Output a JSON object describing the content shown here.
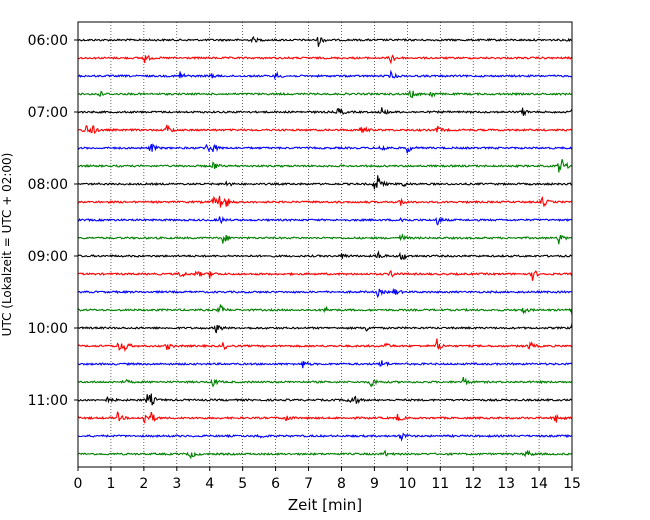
{
  "chart_data": {
    "type": "line",
    "subtype": "helicorder",
    "xlabel": "Zeit  [min]",
    "ylabel": "UTC (Lokalzeit = UTC + 02:00)",
    "xlim": [
      0,
      15
    ],
    "xticks": [
      "0",
      "1",
      "2",
      "3",
      "4",
      "5",
      "6",
      "7",
      "8",
      "9",
      "10",
      "11",
      "12",
      "13",
      "14",
      "15"
    ],
    "y_tick_labels": [
      "06:00",
      "07:00",
      "08:00",
      "09:00",
      "10:00",
      "11:00"
    ],
    "trace_start_times": [
      "06:00",
      "06:15",
      "06:30",
      "06:45",
      "07:00",
      "07:15",
      "07:30",
      "07:45",
      "08:00",
      "08:15",
      "08:30",
      "08:45",
      "09:00",
      "09:15",
      "09:30",
      "09:45",
      "10:00",
      "10:15",
      "10:30",
      "10:45",
      "11:00",
      "11:15",
      "11:30",
      "11:45"
    ],
    "trace_colors": [
      "#000000",
      "#ff0000",
      "#0000ff",
      "#008000"
    ],
    "vertical_grid": "dotted",
    "traces": [
      {
        "color": "#000000",
        "spikes": [
          [
            7.3,
            6
          ],
          [
            5.3,
            3
          ]
        ]
      },
      {
        "color": "#ff0000",
        "spikes": [
          [
            2.0,
            6
          ],
          [
            9.5,
            6
          ]
        ]
      },
      {
        "color": "#0000ff",
        "spikes": [
          [
            3.1,
            5
          ],
          [
            6.0,
            4
          ],
          [
            9.5,
            4
          ],
          [
            4.0,
            3
          ]
        ]
      },
      {
        "color": "#008000",
        "spikes": [
          [
            0.6,
            5
          ],
          [
            10.1,
            5
          ],
          [
            10.7,
            4
          ]
        ]
      },
      {
        "color": "#000000",
        "spikes": [
          [
            7.9,
            6
          ],
          [
            9.2,
            6
          ],
          [
            13.5,
            4
          ],
          [
            15.0,
            4
          ]
        ]
      },
      {
        "color": "#ff0000",
        "spikes": [
          [
            0.2,
            7
          ],
          [
            0.4,
            6
          ],
          [
            2.7,
            6
          ],
          [
            8.6,
            6
          ],
          [
            10.9,
            4
          ]
        ]
      },
      {
        "color": "#0000ff",
        "spikes": [
          [
            2.2,
            6
          ],
          [
            3.9,
            5
          ],
          [
            4.1,
            4
          ],
          [
            9.2,
            5
          ],
          [
            10.0,
            5
          ]
        ]
      },
      {
        "color": "#008000",
        "spikes": [
          [
            4.1,
            5
          ],
          [
            14.6,
            6
          ],
          [
            14.7,
            5
          ]
        ]
      },
      {
        "color": "#000000",
        "spikes": [
          [
            9.0,
            7
          ],
          [
            9.1,
            6
          ],
          [
            9.8,
            5
          ],
          [
            4.5,
            3
          ]
        ]
      },
      {
        "color": "#ff0000",
        "spikes": [
          [
            4.1,
            5
          ],
          [
            4.3,
            6
          ],
          [
            4.5,
            5
          ],
          [
            9.8,
            4
          ],
          [
            14.1,
            6
          ]
        ]
      },
      {
        "color": "#0000ff",
        "spikes": [
          [
            4.3,
            4
          ],
          [
            9.8,
            4
          ],
          [
            10.9,
            5
          ]
        ]
      },
      {
        "color": "#008000",
        "spikes": [
          [
            4.4,
            6
          ],
          [
            9.8,
            4
          ],
          [
            14.6,
            6
          ]
        ]
      },
      {
        "color": "#000000",
        "spikes": [
          [
            9.1,
            5
          ],
          [
            9.8,
            7
          ],
          [
            8.0,
            3
          ]
        ]
      },
      {
        "color": "#ff0000",
        "spikes": [
          [
            3.1,
            4
          ],
          [
            3.6,
            4
          ],
          [
            4.0,
            4
          ],
          [
            9.5,
            4
          ],
          [
            13.8,
            6
          ]
        ]
      },
      {
        "color": "#0000ff",
        "spikes": [
          [
            9.1,
            4
          ],
          [
            9.6,
            4
          ]
        ]
      },
      {
        "color": "#008000",
        "spikes": [
          [
            4.3,
            6
          ],
          [
            7.5,
            3
          ],
          [
            13.5,
            4
          ],
          [
            15.0,
            5
          ]
        ]
      },
      {
        "color": "#000000",
        "spikes": [
          [
            4.2,
            6
          ],
          [
            8.7,
            5
          ],
          [
            15.0,
            4
          ]
        ]
      },
      {
        "color": "#ff0000",
        "spikes": [
          [
            1.2,
            6
          ],
          [
            1.4,
            6
          ],
          [
            2.7,
            4
          ],
          [
            4.4,
            4
          ],
          [
            9.3,
            4
          ],
          [
            10.9,
            7
          ],
          [
            13.7,
            5
          ]
        ]
      },
      {
        "color": "#0000ff",
        "spikes": [
          [
            6.8,
            5
          ],
          [
            9.2,
            5
          ]
        ]
      },
      {
        "color": "#008000",
        "spikes": [
          [
            1.4,
            3
          ],
          [
            4.1,
            5
          ],
          [
            8.9,
            6
          ],
          [
            11.7,
            5
          ]
        ]
      },
      {
        "color": "#000000",
        "spikes": [
          [
            2.1,
            6
          ],
          [
            2.2,
            5
          ],
          [
            8.2,
            5
          ],
          [
            8.4,
            4
          ],
          [
            0.9,
            3
          ]
        ]
      },
      {
        "color": "#ff0000",
        "spikes": [
          [
            1.2,
            5
          ],
          [
            2.0,
            7
          ],
          [
            2.2,
            6
          ],
          [
            6.3,
            4
          ],
          [
            9.7,
            4
          ],
          [
            14.5,
            6
          ]
        ]
      },
      {
        "color": "#0000ff",
        "spikes": [
          [
            5.5,
            3
          ],
          [
            9.8,
            5
          ]
        ]
      },
      {
        "color": "#008000",
        "spikes": [
          [
            3.4,
            5
          ],
          [
            9.3,
            3
          ],
          [
            13.6,
            5
          ]
        ]
      }
    ]
  }
}
